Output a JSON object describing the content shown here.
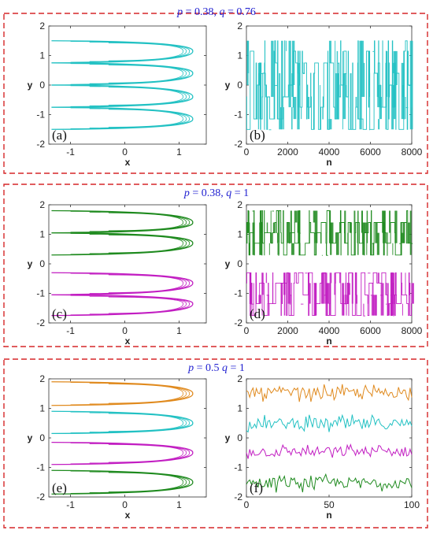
{
  "rows": [
    {
      "title": "p = 0.38, q = 0.76",
      "title_parts": {
        "p_sym": "p",
        "p_eq": " = 0.38, ",
        "q_sym": "q",
        "q_eq": " = 0.76"
      },
      "left": {
        "panel_label": "(a)",
        "xlabel": "x",
        "ylabel": "y",
        "xticks": [
          "-1",
          "0",
          "1"
        ],
        "yticks": [
          "-2",
          "-1",
          "0",
          "1",
          "2"
        ]
      },
      "right": {
        "panel_label": "(b)",
        "xlabel": "n",
        "ylabel": "y",
        "xticks": [
          "0",
          "2000",
          "4000",
          "6000",
          "8000"
        ],
        "yticks": [
          "-2",
          "-1",
          "0",
          "1",
          "2"
        ]
      }
    },
    {
      "title": "p = 0.38, q = 1",
      "title_parts": {
        "p_sym": "p",
        "p_eq": " = 0.38, ",
        "q_sym": "q",
        "q_eq": " = 1"
      },
      "left": {
        "panel_label": "(c)",
        "xlabel": "x",
        "ylabel": "y",
        "xticks": [
          "-1",
          "0",
          "1"
        ],
        "yticks": [
          "-2",
          "-1",
          "0",
          "1",
          "2"
        ]
      },
      "right": {
        "panel_label": "(d)",
        "xlabel": "n",
        "ylabel": "y",
        "xticks": [
          "0",
          "2000",
          "4000",
          "6000",
          "8000"
        ],
        "yticks": [
          "-2",
          "-1",
          "0",
          "1",
          "2"
        ]
      }
    },
    {
      "title": "p = 0.5 q = 1",
      "title_parts": {
        "p_sym": "p",
        "p_eq": " = 0.5 ",
        "q_sym": "q",
        "q_eq": " = 1"
      },
      "left": {
        "panel_label": "(e)",
        "xlabel": "x",
        "ylabel": "y",
        "xticks": [
          "-1",
          "0",
          "1"
        ],
        "yticks": [
          "-2",
          "-1",
          "0",
          "1",
          "2"
        ]
      },
      "right": {
        "panel_label": "(f)",
        "xlabel": "n",
        "ylabel": "y",
        "xticks": [
          "0",
          "50",
          "100"
        ],
        "yticks": [
          "-2",
          "-1",
          "0",
          "1",
          "2"
        ]
      }
    }
  ],
  "colors": {
    "cyan": "#22c1c3",
    "green": "#1e8a1e",
    "magenta": "#c21ec2",
    "orange": "#e08a1e",
    "frame": "#d62728",
    "title": "#1f1fd0"
  },
  "chart_data": [
    {
      "panel": "(a)",
      "type": "line",
      "x_range": [
        -1.4,
        1.5
      ],
      "y_range": [
        -2,
        2
      ],
      "series": [
        {
          "color": "cyan",
          "arms_y": [
            1.5,
            0.75,
            0.0,
            -0.75,
            -1.5
          ],
          "tips_y": [
            1.15,
            0.4,
            -0.4,
            -1.15
          ]
        }
      ]
    },
    {
      "panel": "(b)",
      "type": "line",
      "x_range": [
        0,
        8000
      ],
      "y_range": [
        -2,
        2
      ],
      "series": [
        {
          "color": "cyan",
          "levels": [
            1.5,
            1.15,
            0.75,
            0.4,
            0.0,
            -0.4,
            -0.75,
            -1.15,
            -1.5
          ]
        }
      ]
    },
    {
      "panel": "(c)",
      "type": "line",
      "x_range": [
        -1.4,
        1.5
      ],
      "y_range": [
        -2,
        2
      ],
      "series": [
        {
          "color": "green",
          "arms_y": [
            1.8,
            1.05,
            0.3
          ],
          "tips_y": [
            1.4,
            0.7
          ]
        },
        {
          "color": "magenta",
          "arms_y": [
            -0.3,
            -1.05,
            -1.75
          ],
          "tips_y": [
            -0.65,
            -1.35
          ]
        }
      ]
    },
    {
      "panel": "(d)",
      "type": "line",
      "x_range": [
        0,
        8000
      ],
      "y_range": [
        -2,
        2
      ],
      "series": [
        {
          "color": "green",
          "levels": [
            1.8,
            1.4,
            1.05,
            0.7,
            0.3
          ]
        },
        {
          "color": "magenta",
          "levels": [
            -0.3,
            -0.65,
            -1.05,
            -1.35,
            -1.75
          ]
        }
      ]
    },
    {
      "panel": "(e)",
      "type": "line",
      "x_range": [
        -1.4,
        1.5
      ],
      "y_range": [
        -2,
        2
      ],
      "series": [
        {
          "color": "orange",
          "arms_y": [
            1.9,
            1.1
          ],
          "tips_y": [
            1.5
          ]
        },
        {
          "color": "cyan",
          "arms_y": [
            0.9,
            0.15
          ],
          "tips_y": [
            0.5
          ]
        },
        {
          "color": "magenta",
          "arms_y": [
            -0.15,
            -0.9
          ],
          "tips_y": [
            -0.5
          ]
        },
        {
          "color": "green",
          "arms_y": [
            -1.1,
            -1.9
          ],
          "tips_y": [
            -1.5
          ]
        }
      ]
    },
    {
      "panel": "(f)",
      "type": "line",
      "x_range": [
        0,
        100
      ],
      "y_range": [
        -2,
        2
      ],
      "series": [
        {
          "color": "orange",
          "center": 1.55,
          "amp": 0.3
        },
        {
          "color": "cyan",
          "center": 0.5,
          "amp": 0.32
        },
        {
          "color": "magenta",
          "center": -0.45,
          "amp": 0.3
        },
        {
          "color": "green",
          "center": -1.5,
          "amp": 0.32
        }
      ]
    }
  ]
}
